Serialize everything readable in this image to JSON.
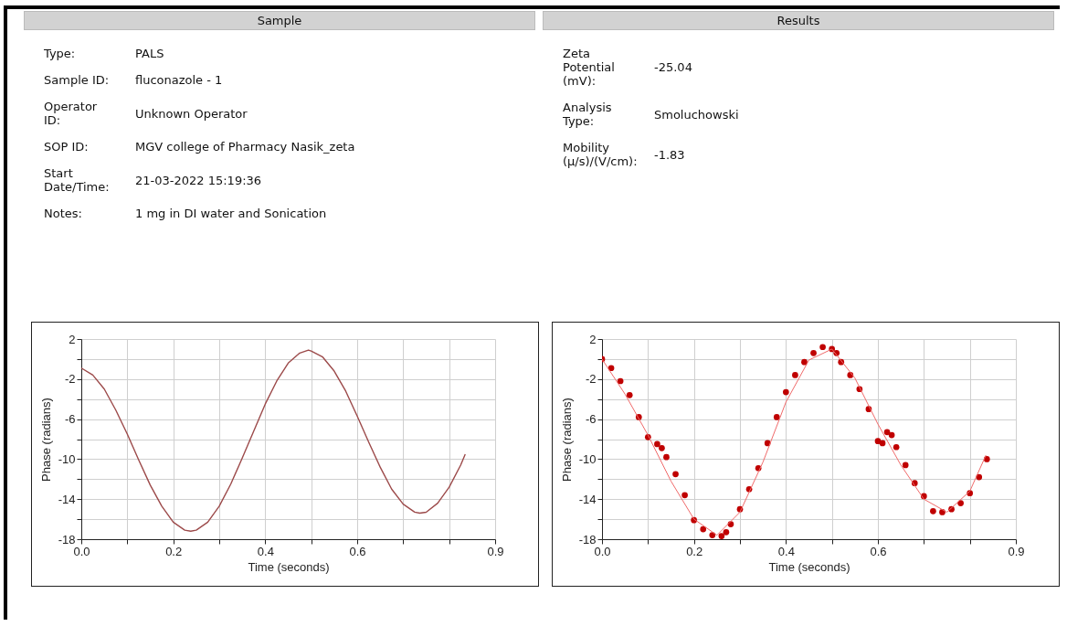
{
  "chart_data": [
    {
      "type": "other",
      "title": "Sample",
      "annotations": [
        "Type:",
        "PALS",
        "Sample ID:",
        "fluconazole - 1",
        "Operator ID:",
        "Unknown Operator",
        "SOP ID:",
        "MGV college of Pharmacy Nasik_zeta",
        "Start Date/Time:",
        "21-03-2022 15:19:36",
        "Notes:",
        "1 mg in DI water and Sonication"
      ]
    },
    {
      "type": "other",
      "title": "Results",
      "annotations": [
        "Zeta Potential (mV):",
        "-25.04",
        "Analysis Type:",
        "Smoluchowski",
        "Mobility (μ/s)/(V/cm):",
        "-1.83"
      ]
    },
    {
      "type": "line",
      "xlabel": "Time (seconds)",
      "ylabel": "Phase (radians)",
      "grid": true,
      "line_style": "solid",
      "xlim": [
        0,
        0.9
      ],
      "ylim": [
        -18,
        2
      ],
      "xticks": [
        {
          "value": 0,
          "label": "0.0"
        },
        {
          "value": 0.1,
          "label": null
        },
        {
          "value": 0.2,
          "label": "0.2"
        },
        {
          "value": 0.3,
          "label": null
        },
        {
          "value": 0.4,
          "label": "0.4"
        },
        {
          "value": 0.5,
          "label": null
        },
        {
          "value": 0.6,
          "label": "0.6"
        },
        {
          "value": 0.7,
          "label": null
        },
        {
          "value": 0.8,
          "label": null
        },
        {
          "value": 0.9,
          "label": "0.9"
        }
      ],
      "yticks": [
        2,
        {
          "value": 0,
          "label": null
        },
        -2,
        {
          "value": -4,
          "label": null
        },
        -6,
        {
          "value": -8,
          "label": null
        },
        -10,
        {
          "value": -12,
          "label": null
        },
        -14,
        {
          "value": -16,
          "label": null
        },
        -18
      ],
      "x": [
        0,
        0.025,
        0.05,
        0.075,
        0.1,
        0.125,
        0.15,
        0.175,
        0.2,
        0.225,
        0.238,
        0.25,
        0.275,
        0.3,
        0.325,
        0.35,
        0.375,
        0.4,
        0.425,
        0.45,
        0.475,
        0.494,
        0.5,
        0.525,
        0.55,
        0.575,
        0.6,
        0.625,
        0.65,
        0.675,
        0.7,
        0.725,
        0.736,
        0.75,
        0.775,
        0.8,
        0.825,
        0.835
      ],
      "series": [
        {
          "color": "#9c4a4a",
          "values": [
            -0.9,
            -1.6,
            -3.0,
            -5.1,
            -7.5,
            -10.1,
            -12.6,
            -14.7,
            -16.3,
            -17.1,
            -17.2,
            -17.1,
            -16.3,
            -14.7,
            -12.5,
            -9.9,
            -7.2,
            -4.5,
            -2.2,
            -0.4,
            0.6,
            0.9,
            0.8,
            0.2,
            -1.2,
            -3.2,
            -5.7,
            -8.3,
            -10.8,
            -13.0,
            -14.5,
            -15.3,
            -15.4,
            -15.3,
            -14.4,
            -12.8,
            -10.6,
            -9.5
          ]
        }
      ]
    },
    {
      "type": "scatter",
      "xlabel": "Time (seconds)",
      "ylabel": "Phase (radians)",
      "grid": true,
      "line_style": "solid",
      "xlim": [
        0,
        0.9
      ],
      "ylim": [
        -18,
        2
      ],
      "xticks": [
        {
          "value": 0,
          "label": "0.0"
        },
        {
          "value": 0.1,
          "label": null
        },
        {
          "value": 0.2,
          "label": "0.2"
        },
        {
          "value": 0.3,
          "label": null
        },
        {
          "value": 0.4,
          "label": "0.4"
        },
        {
          "value": 0.5,
          "label": null
        },
        {
          "value": 0.6,
          "label": "0.6"
        },
        {
          "value": 0.7,
          "label": null
        },
        {
          "value": 0.8,
          "label": null
        },
        {
          "value": 0.9,
          "label": "0.9"
        }
      ],
      "yticks": [
        2,
        {
          "value": 0,
          "label": null
        },
        -2,
        {
          "value": -4,
          "label": null
        },
        -6,
        {
          "value": -8,
          "label": null
        },
        -10,
        {
          "value": -12,
          "label": null
        },
        -14,
        {
          "value": -16,
          "label": null
        },
        -18
      ],
      "series": [
        {
          "color": "#c00000",
          "marker": "circle",
          "x": [
            0,
            0.02,
            0.04,
            0.06,
            0.08,
            0.1,
            0.12,
            0.13,
            0.14,
            0.16,
            0.18,
            0.2,
            0.22,
            0.24,
            0.26,
            0.27,
            0.28,
            0.3,
            0.32,
            0.34,
            0.36,
            0.38,
            0.4,
            0.42,
            0.44,
            0.46,
            0.48,
            0.5,
            0.51,
            0.52,
            0.54,
            0.56,
            0.58,
            0.6,
            0.61,
            0.62,
            0.63,
            0.64,
            0.66,
            0.68,
            0.7,
            0.72,
            0.74,
            0.76,
            0.78,
            0.8,
            0.82,
            0.837
          ],
          "values": [
            0.0,
            -0.9,
            -2.2,
            -3.6,
            -5.8,
            -7.8,
            -8.5,
            -8.9,
            -9.8,
            -11.5,
            -13.6,
            -16.1,
            -17.0,
            -17.6,
            -17.7,
            -17.3,
            -16.5,
            -15.0,
            -13.0,
            -10.9,
            -8.4,
            -5.8,
            -3.3,
            -1.6,
            -0.3,
            0.6,
            1.2,
            1.0,
            0.6,
            -0.3,
            -1.6,
            -3.0,
            -5.0,
            -8.2,
            -8.4,
            -7.3,
            -7.6,
            -8.8,
            -10.6,
            -12.4,
            -13.7,
            -15.2,
            -15.3,
            -15.0,
            -14.4,
            -13.4,
            -11.8,
            -10.0
          ]
        },
        {
          "type": "line",
          "color": "#f06a6a",
          "x": [
            0,
            0.05,
            0.1,
            0.15,
            0.2,
            0.25,
            0.3,
            0.35,
            0.4,
            0.45,
            0.5,
            0.55,
            0.6,
            0.65,
            0.7,
            0.75,
            0.8,
            0.835
          ],
          "values": [
            0,
            -3.5,
            -7.6,
            -12.2,
            -16.0,
            -17.6,
            -15.3,
            -10.3,
            -4.3,
            -0.1,
            1.0,
            -1.9,
            -6.5,
            -10.6,
            -14.0,
            -15.3,
            -13.2,
            -9.6
          ]
        }
      ]
    }
  ]
}
